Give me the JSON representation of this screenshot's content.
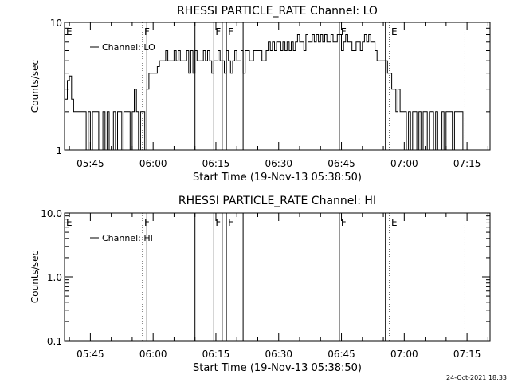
{
  "chart_data": [
    {
      "type": "line",
      "title": "RHESSI PARTICLE_RATE Channel: LO",
      "xlabel": "Start Time (19-Nov-13 05:38:50)",
      "ylabel": "Counts/sec",
      "y_scale": "log",
      "ylim": [
        1,
        10
      ],
      "y_ticks": [
        {
          "value": 1,
          "label": "1"
        },
        {
          "value": 10,
          "label": "10"
        }
      ],
      "xlim": [
        "05:38:50",
        "07:20:30"
      ],
      "x_ticks": [
        "05:45",
        "06:00",
        "06:15",
        "06:30",
        "06:45",
        "07:00",
        "07:15"
      ],
      "legend": {
        "placement": "top-left",
        "entries": [
          "Channel: LO"
        ]
      },
      "flags": [
        {
          "label": "E",
          "time": "05:38:50",
          "style": "solid"
        },
        {
          "label": "F",
          "time": "05:57:30",
          "style": "dotted"
        },
        {
          "label": "",
          "time": "05:58:30",
          "style": "solid"
        },
        {
          "label": "",
          "time": "06:10:00",
          "style": "solid"
        },
        {
          "label": "F",
          "time": "06:14:30",
          "style": "solid"
        },
        {
          "label": "",
          "time": "06:16:30",
          "style": "solid"
        },
        {
          "label": "F",
          "time": "06:17:30",
          "style": "solid"
        },
        {
          "label": "",
          "time": "06:21:30",
          "style": "solid"
        },
        {
          "label": "F",
          "time": "06:44:30",
          "style": "solid"
        },
        {
          "label": "",
          "time": "06:55:30",
          "style": "solid"
        },
        {
          "label": "E",
          "time": "06:56:30",
          "style": "dotted"
        },
        {
          "label": "",
          "time": "07:14:30",
          "style": "dotted"
        }
      ],
      "series": [
        {
          "name": "Channel: LO",
          "x": [
            "05:38:50",
            "05:39:30",
            "05:40:00",
            "05:40:30",
            "05:41:00",
            "05:41:30",
            "05:42:00",
            "05:42:30",
            "05:43:00",
            "05:43:30",
            "05:44:00",
            "05:44:30",
            "05:45:00",
            "05:45:30",
            "05:46:00",
            "05:47:00",
            "05:47:30",
            "05:48:00",
            "05:48:30",
            "05:49:00",
            "05:49:30",
            "05:50:00",
            "05:50:30",
            "05:51:00",
            "05:51:30",
            "05:52:00",
            "05:52:30",
            "05:53:00",
            "05:53:30",
            "05:54:00",
            "05:54:30",
            "05:55:00",
            "05:55:30",
            "05:56:00",
            "05:56:30",
            "05:57:00",
            "05:57:30",
            "05:58:00",
            "05:58:30",
            "05:59:00",
            "06:00:00",
            "06:01:00",
            "06:01:30",
            "06:02:00",
            "06:02:30",
            "06:03:00",
            "06:03:30",
            "06:04:00",
            "06:04:30",
            "06:05:00",
            "06:05:30",
            "06:06:00",
            "06:06:30",
            "06:07:00",
            "06:07:30",
            "06:08:00",
            "06:08:30",
            "06:09:00",
            "06:09:30",
            "06:10:00",
            "06:10:30",
            "06:11:00",
            "06:12:00",
            "06:12:30",
            "06:13:00",
            "06:13:30",
            "06:14:00",
            "06:14:30",
            "06:15:00",
            "06:15:30",
            "06:16:00",
            "06:16:30",
            "06:17:00",
            "06:17:30",
            "06:18:00",
            "06:18:30",
            "06:19:00",
            "06:19:30",
            "06:20:00",
            "06:20:30",
            "06:21:00",
            "06:21:30",
            "06:22:00",
            "06:23:00",
            "06:24:00",
            "06:25:00",
            "06:26:00",
            "06:27:00",
            "06:27:30",
            "06:28:00",
            "06:28:30",
            "06:29:00",
            "06:29:30",
            "06:30:00",
            "06:30:30",
            "06:31:00",
            "06:31:30",
            "06:32:00",
            "06:32:30",
            "06:33:00",
            "06:33:30",
            "06:34:00",
            "06:34:30",
            "06:35:00",
            "06:35:30",
            "06:36:00",
            "06:36:30",
            "06:37:00",
            "06:37:30",
            "06:38:00",
            "06:38:30",
            "06:39:00",
            "06:39:30",
            "06:40:00",
            "06:40:30",
            "06:41:00",
            "06:41:30",
            "06:42:00",
            "06:42:30",
            "06:43:00",
            "06:43:30",
            "06:44:00",
            "06:44:30",
            "06:45:00",
            "06:45:30",
            "06:46:00",
            "06:46:30",
            "06:47:00",
            "06:47:30",
            "06:48:00",
            "06:48:30",
            "06:49:00",
            "06:49:30",
            "06:50:00",
            "06:50:30",
            "06:51:00",
            "06:51:30",
            "06:52:00",
            "06:52:30",
            "06:53:00",
            "06:53:30",
            "06:54:00",
            "06:54:30",
            "06:55:00",
            "06:55:30",
            "06:56:00",
            "06:56:30",
            "06:57:00",
            "06:57:30",
            "06:58:00",
            "06:58:30",
            "06:59:00",
            "06:59:30",
            "07:00:00",
            "07:00:30",
            "07:01:00",
            "07:01:30",
            "07:02:00",
            "07:02:30",
            "07:03:00",
            "07:03:30",
            "07:04:00",
            "07:04:30",
            "07:05:00",
            "07:05:30",
            "07:06:00",
            "07:06:30",
            "07:07:00",
            "07:07:30",
            "07:08:00",
            "07:08:30",
            "07:09:00",
            "07:09:30",
            "07:10:00",
            "07:10:30",
            "07:11:00",
            "07:11:30",
            "07:12:00",
            "07:12:30",
            "07:13:00",
            "07:13:30",
            "07:14:00",
            "07:14:30"
          ],
          "y": [
            2.5,
            3.5,
            3.8,
            2.5,
            2,
            2,
            2,
            2,
            2,
            2,
            1,
            2,
            1,
            2,
            2,
            1,
            1,
            2,
            1,
            2,
            1,
            1,
            2,
            1,
            2,
            2,
            1,
            2,
            2,
            2,
            1,
            2,
            3,
            2,
            1,
            2,
            2,
            1,
            3,
            4,
            4,
            4.5,
            5,
            5,
            5,
            6,
            5,
            5,
            5,
            6,
            5,
            6,
            5,
            5,
            5,
            6,
            4,
            6,
            4,
            6,
            5,
            5,
            6,
            5,
            6,
            5,
            4,
            5,
            5,
            6,
            5,
            5,
            4,
            6,
            5,
            4,
            5,
            6,
            5,
            5,
            6,
            4,
            6,
            5,
            6,
            6,
            5,
            6,
            7,
            6,
            7,
            6,
            7,
            7,
            6,
            7,
            6,
            7,
            6,
            7,
            6,
            7,
            8,
            7,
            7,
            6,
            8,
            7,
            7,
            8,
            7,
            8,
            7,
            8,
            7,
            8,
            7,
            7,
            8,
            7,
            7,
            8,
            8,
            6,
            7,
            8,
            7,
            7,
            6,
            6,
            7,
            7,
            6,
            7,
            8,
            7,
            8,
            7,
            7,
            6,
            5,
            5,
            5,
            5,
            5,
            4,
            4,
            3,
            3,
            2,
            3,
            2,
            2,
            2,
            1,
            2,
            1,
            2,
            2,
            1,
            2,
            1,
            2,
            2,
            1,
            2,
            2,
            1,
            2,
            1,
            1,
            2,
            1,
            2,
            2,
            2,
            1,
            2,
            2,
            2,
            2,
            1,
            2
          ]
        }
      ]
    },
    {
      "type": "line",
      "title": "RHESSI PARTICLE_RATE Channel: HI",
      "xlabel": "Start Time (19-Nov-13 05:38:50)",
      "ylabel": "Counts/sec",
      "y_scale": "log",
      "ylim": [
        0.1,
        10
      ],
      "y_ticks": [
        {
          "value": 0.1,
          "label": "0.1"
        },
        {
          "value": 1,
          "label": "1.0"
        },
        {
          "value": 10,
          "label": "10.0"
        }
      ],
      "xlim": [
        "05:38:50",
        "07:20:30"
      ],
      "x_ticks": [
        "05:45",
        "06:00",
        "06:15",
        "06:30",
        "06:45",
        "07:00",
        "07:15"
      ],
      "legend": {
        "placement": "top-left",
        "entries": [
          "Channel: HI"
        ]
      },
      "flags": [
        {
          "label": "E",
          "time": "05:38:50",
          "style": "solid"
        },
        {
          "label": "F",
          "time": "05:57:30",
          "style": "dotted"
        },
        {
          "label": "",
          "time": "05:58:30",
          "style": "solid"
        },
        {
          "label": "",
          "time": "06:10:00",
          "style": "solid"
        },
        {
          "label": "F",
          "time": "06:14:30",
          "style": "solid"
        },
        {
          "label": "",
          "time": "06:16:30",
          "style": "solid"
        },
        {
          "label": "F",
          "time": "06:17:30",
          "style": "solid"
        },
        {
          "label": "",
          "time": "06:21:30",
          "style": "solid"
        },
        {
          "label": "F",
          "time": "06:44:30",
          "style": "solid"
        },
        {
          "label": "",
          "time": "06:55:30",
          "style": "solid"
        },
        {
          "label": "E",
          "time": "06:56:30",
          "style": "dotted"
        },
        {
          "label": "",
          "time": "07:14:30",
          "style": "dotted"
        }
      ],
      "series": [
        {
          "name": "Channel: HI",
          "x": [],
          "y": []
        }
      ]
    }
  ],
  "footer": {
    "timestamp": "24-Oct-2021 18:33"
  },
  "colors": {
    "background": "#ffffff",
    "ink": "#000000"
  }
}
